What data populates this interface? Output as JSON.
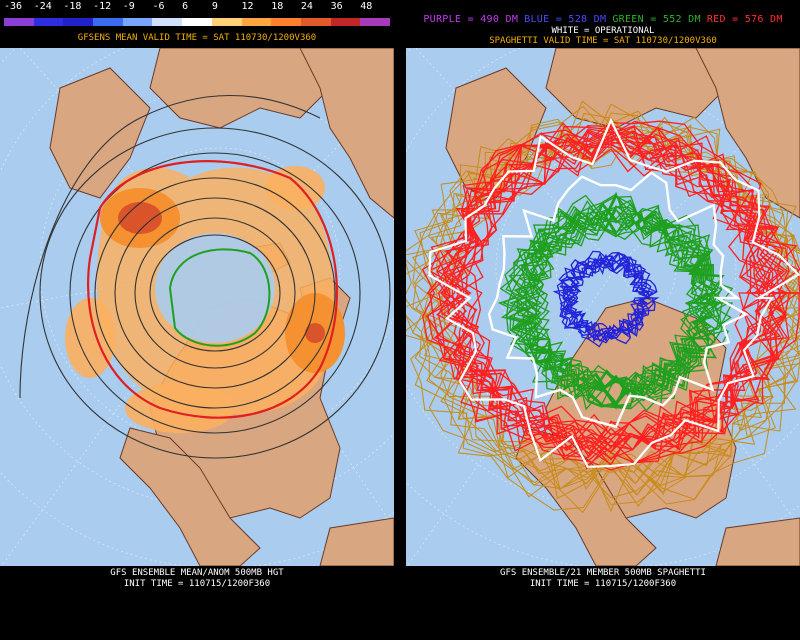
{
  "left": {
    "scale_labels": [
      "-36",
      "-24",
      "-18",
      "-12",
      "-9",
      "-6",
      "6",
      "9",
      "12",
      "18",
      "24",
      "36",
      "48"
    ],
    "scale_colors": [
      "#8b3fd6",
      "#2e2ee0",
      "#2222cc",
      "#3b6cf0",
      "#7aa5ff",
      "#cfe0ff",
      "#ffffff",
      "#ffd27a",
      "#ffa640",
      "#ff7f2a",
      "#e35a2a",
      "#c02828",
      "#a53bb8"
    ],
    "title": "GFSENS MEAN VALID TIME = SAT 110730/1200V360",
    "footer_line1": "GFS ENSEMBLE MEAN/ANOM 500MB HGT",
    "footer_line2": "INIT TIME = 110715/1200F360"
  },
  "right": {
    "legend": [
      {
        "text": "PURPLE = 490 DM",
        "color": "#c43bf0"
      },
      {
        "text": "BLUE = 528 DM",
        "color": "#4a4aff"
      },
      {
        "text": "GREEN = 552 DM",
        "color": "#2fb02f"
      },
      {
        "text": "RED = 576 DM",
        "color": "#ff3030"
      }
    ],
    "operational": "WHITE = OPERATIONAL",
    "title": "SPAGHETTI VALID TIME = SAT 110730/1200V360",
    "footer_line1": "GFS ENSEMBLE/21 MEMBER 500MB SPAGHETTI",
    "footer_line2": "INIT TIME = 110715/1200F360"
  },
  "colors": {
    "ocean": "#a9ccef",
    "land": "#d9a682",
    "coast": "#6b3a24",
    "anomaly_light": "#fbb060",
    "anomaly_mid": "#f59130",
    "anomaly_dark": "#d9542a",
    "contour": "#333333",
    "red_contour": "#e02020",
    "green_contour": "#20a020",
    "spaghetti_red": "#ff2020",
    "spaghetti_green": "#1fa01f",
    "spaghetti_blue": "#2323d8",
    "spaghetti_orange": "#c88c1a",
    "spaghetti_white": "#ffffff"
  }
}
